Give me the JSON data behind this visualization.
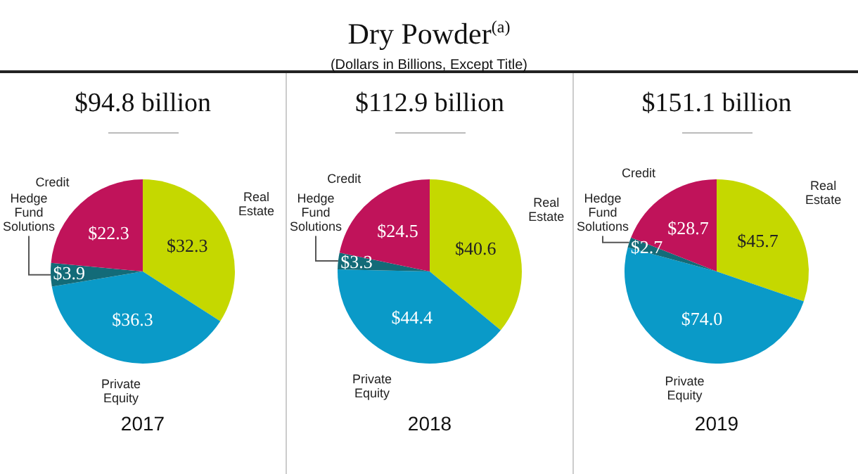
{
  "chart_data": [
    {
      "type": "other",
      "title": "Dry Powder$^{(a)}$",
      "subtitle": "(Dollars in Billions, Except Title)"
    },
    {
      "type": "pie",
      "title": "$94.8 billion",
      "xlabel": "2017",
      "categories": [
        "Real Estate",
        "Private Equity",
        "Hedge Fund Solutions",
        "Credit"
      ],
      "values": [
        32.3,
        36.3,
        3.9,
        22.3
      ],
      "value_labels": [
        "$32.3",
        "$36.3",
        "$3.9",
        "$22.3"
      ],
      "colors": [
        "#c5d800",
        "#0a9ac8",
        "#136b78",
        "#c0135a"
      ],
      "legend": false
    },
    {
      "type": "pie",
      "title": "$112.9 billion",
      "xlabel": "2018",
      "categories": [
        "Real Estate",
        "Private Equity",
        "Hedge Fund Solutions",
        "Credit"
      ],
      "values": [
        40.6,
        44.4,
        3.3,
        24.5
      ],
      "value_labels": [
        "$40.6",
        "$44.4",
        "$3.3",
        "$24.5"
      ],
      "colors": [
        "#c5d800",
        "#0a9ac8",
        "#136b78",
        "#c0135a"
      ],
      "legend": false
    },
    {
      "type": "pie",
      "title": "$151.1 billion",
      "xlabel": "2019",
      "categories": [
        "Real Estate",
        "Private Equity",
        "Hedge Fund Solutions",
        "Credit"
      ],
      "values": [
        45.7,
        74.0,
        2.7,
        28.7
      ],
      "value_labels": [
        "$45.7",
        "$74.0",
        "$2.7",
        "$28.7"
      ],
      "colors": [
        "#c5d800",
        "#0a9ac8",
        "#136b78",
        "#c0135a"
      ],
      "legend": false
    }
  ]
}
